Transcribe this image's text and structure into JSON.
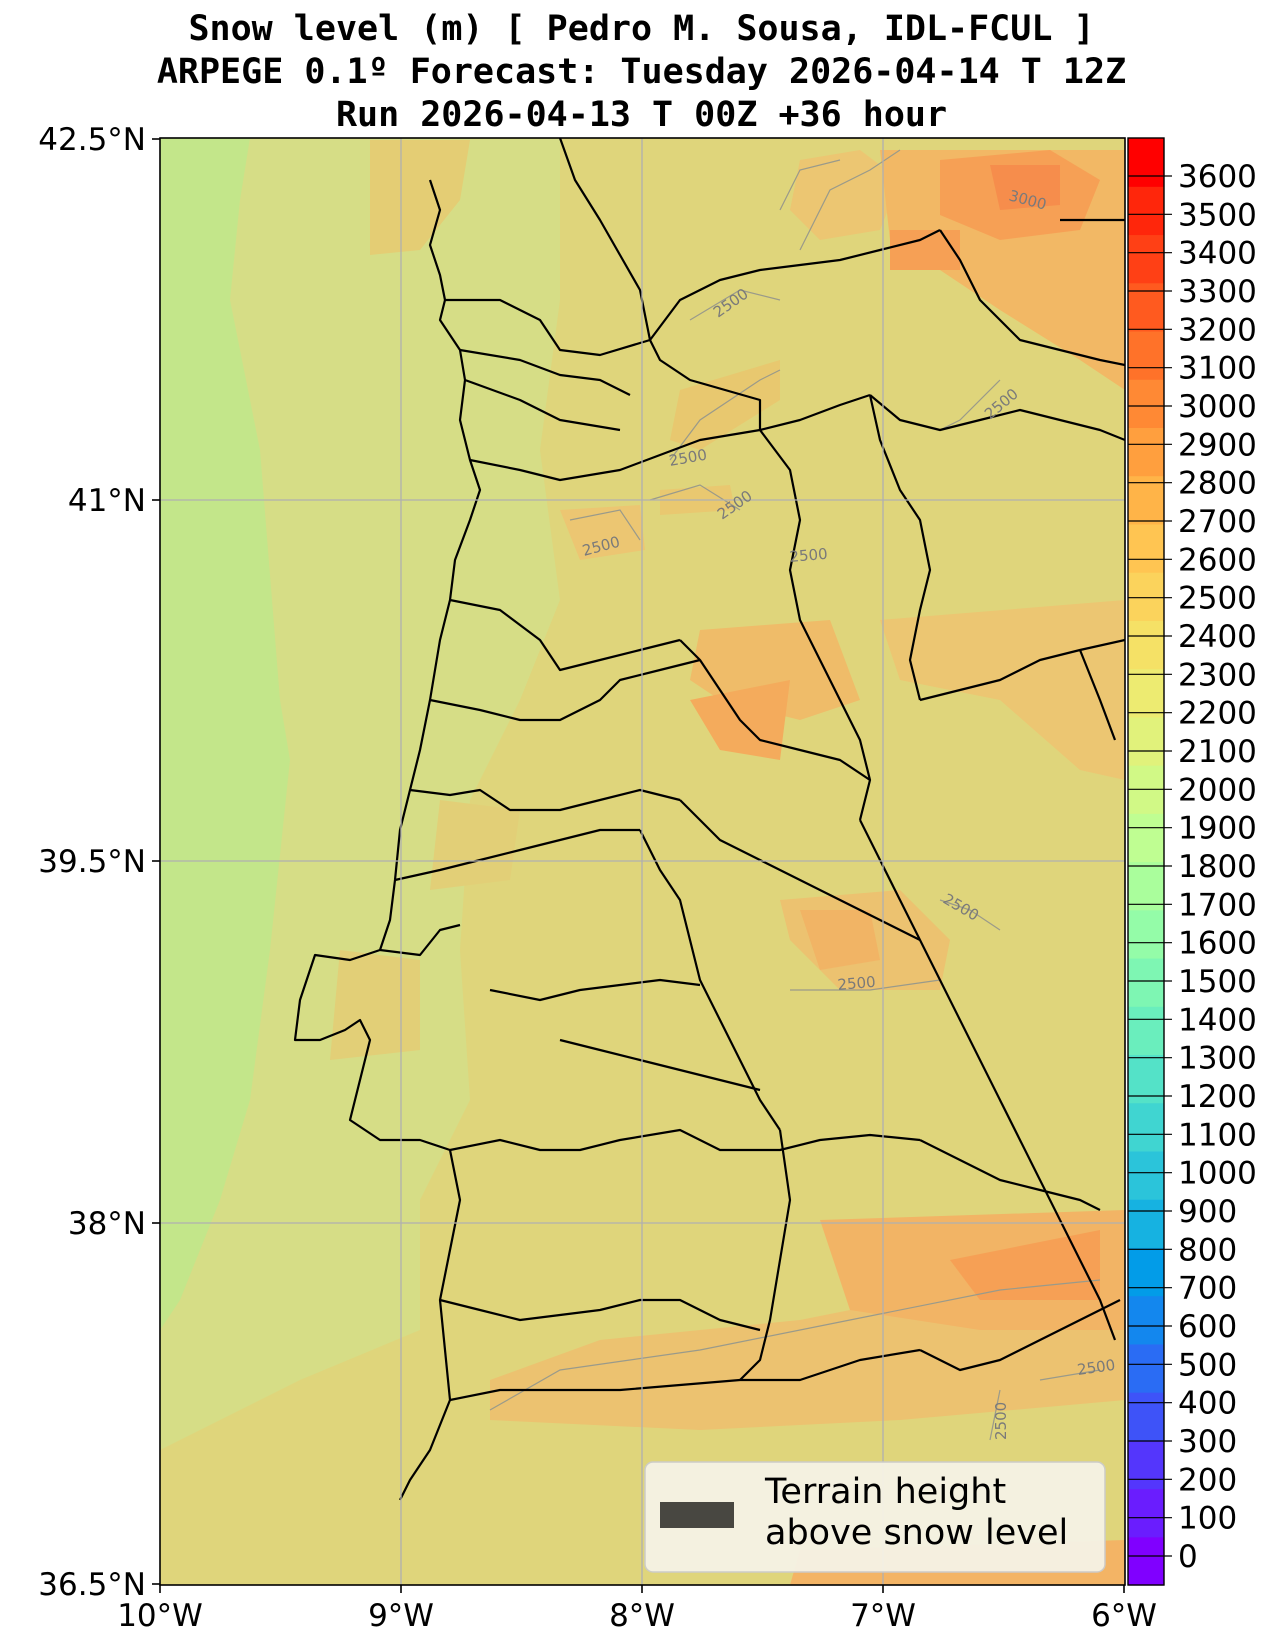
{
  "title": {
    "line1": "Snow level (m) [ Pedro M. Sousa, IDL-FCUL ]",
    "line2": "ARPEGE 0.1º Forecast: Tuesday 2026-04-14 T 12Z",
    "line3": "Run 2026-04-13 T 00Z +36 hour"
  },
  "axes": {
    "lat_ticks": [
      "42.5°N",
      "41°N",
      "39.5°N",
      "38°N",
      "36.5°N"
    ],
    "lon_ticks": [
      "10°W",
      "9°W",
      "8°W",
      "7°W",
      "6°W"
    ]
  },
  "colorbar": {
    "labels": [
      "0",
      "100",
      "200",
      "300",
      "400",
      "500",
      "600",
      "700",
      "800",
      "900",
      "1000",
      "1100",
      "1200",
      "1300",
      "1400",
      "1500",
      "1600",
      "1700",
      "1800",
      "1900",
      "2000",
      "2100",
      "2200",
      "2300",
      "2400",
      "2500",
      "2600",
      "2700",
      "2800",
      "2900",
      "3000",
      "3100",
      "3200",
      "3300",
      "3400",
      "3500",
      "3600"
    ],
    "colors": [
      "#8000ff",
      "#6a1dfe",
      "#5436fc",
      "#3e53f8",
      "#2a6cf4",
      "#1387ee",
      "#029ce8",
      "#16b2e1",
      "#2bc4da",
      "#40d5d1",
      "#54e2c8",
      "#6aeebd",
      "#7ef6b3",
      "#94fca8",
      "#aafe9c",
      "#bffe92",
      "#d1f986",
      "#e1f27b",
      "#edeb71",
      "#f5e166",
      "#fbd35c",
      "#ffc552",
      "#ffb448",
      "#ff9f3e",
      "#ff8934",
      "#ff7229",
      "#ff5a1f",
      "#ff4015",
      "#ff260b",
      "#ff0000"
    ]
  },
  "contours": {
    "labels": [
      "3000",
      "2500",
      "2500",
      "2500",
      "2500",
      "2500",
      "2500",
      "2500",
      "2500",
      "2500",
      "2500"
    ]
  },
  "legend": {
    "line1": "Terrain height",
    "line2": "above snow level",
    "swatch_color": "#484741"
  },
  "palette": {
    "ocean_green": "#c3e68a",
    "land_low": "#d2e08a",
    "land_mid": "#dfd67c",
    "land_warm": "#ecc672",
    "orange": "#f5b563",
    "orange_deep": "#f9a053",
    "red_orange": "#f78848"
  }
}
